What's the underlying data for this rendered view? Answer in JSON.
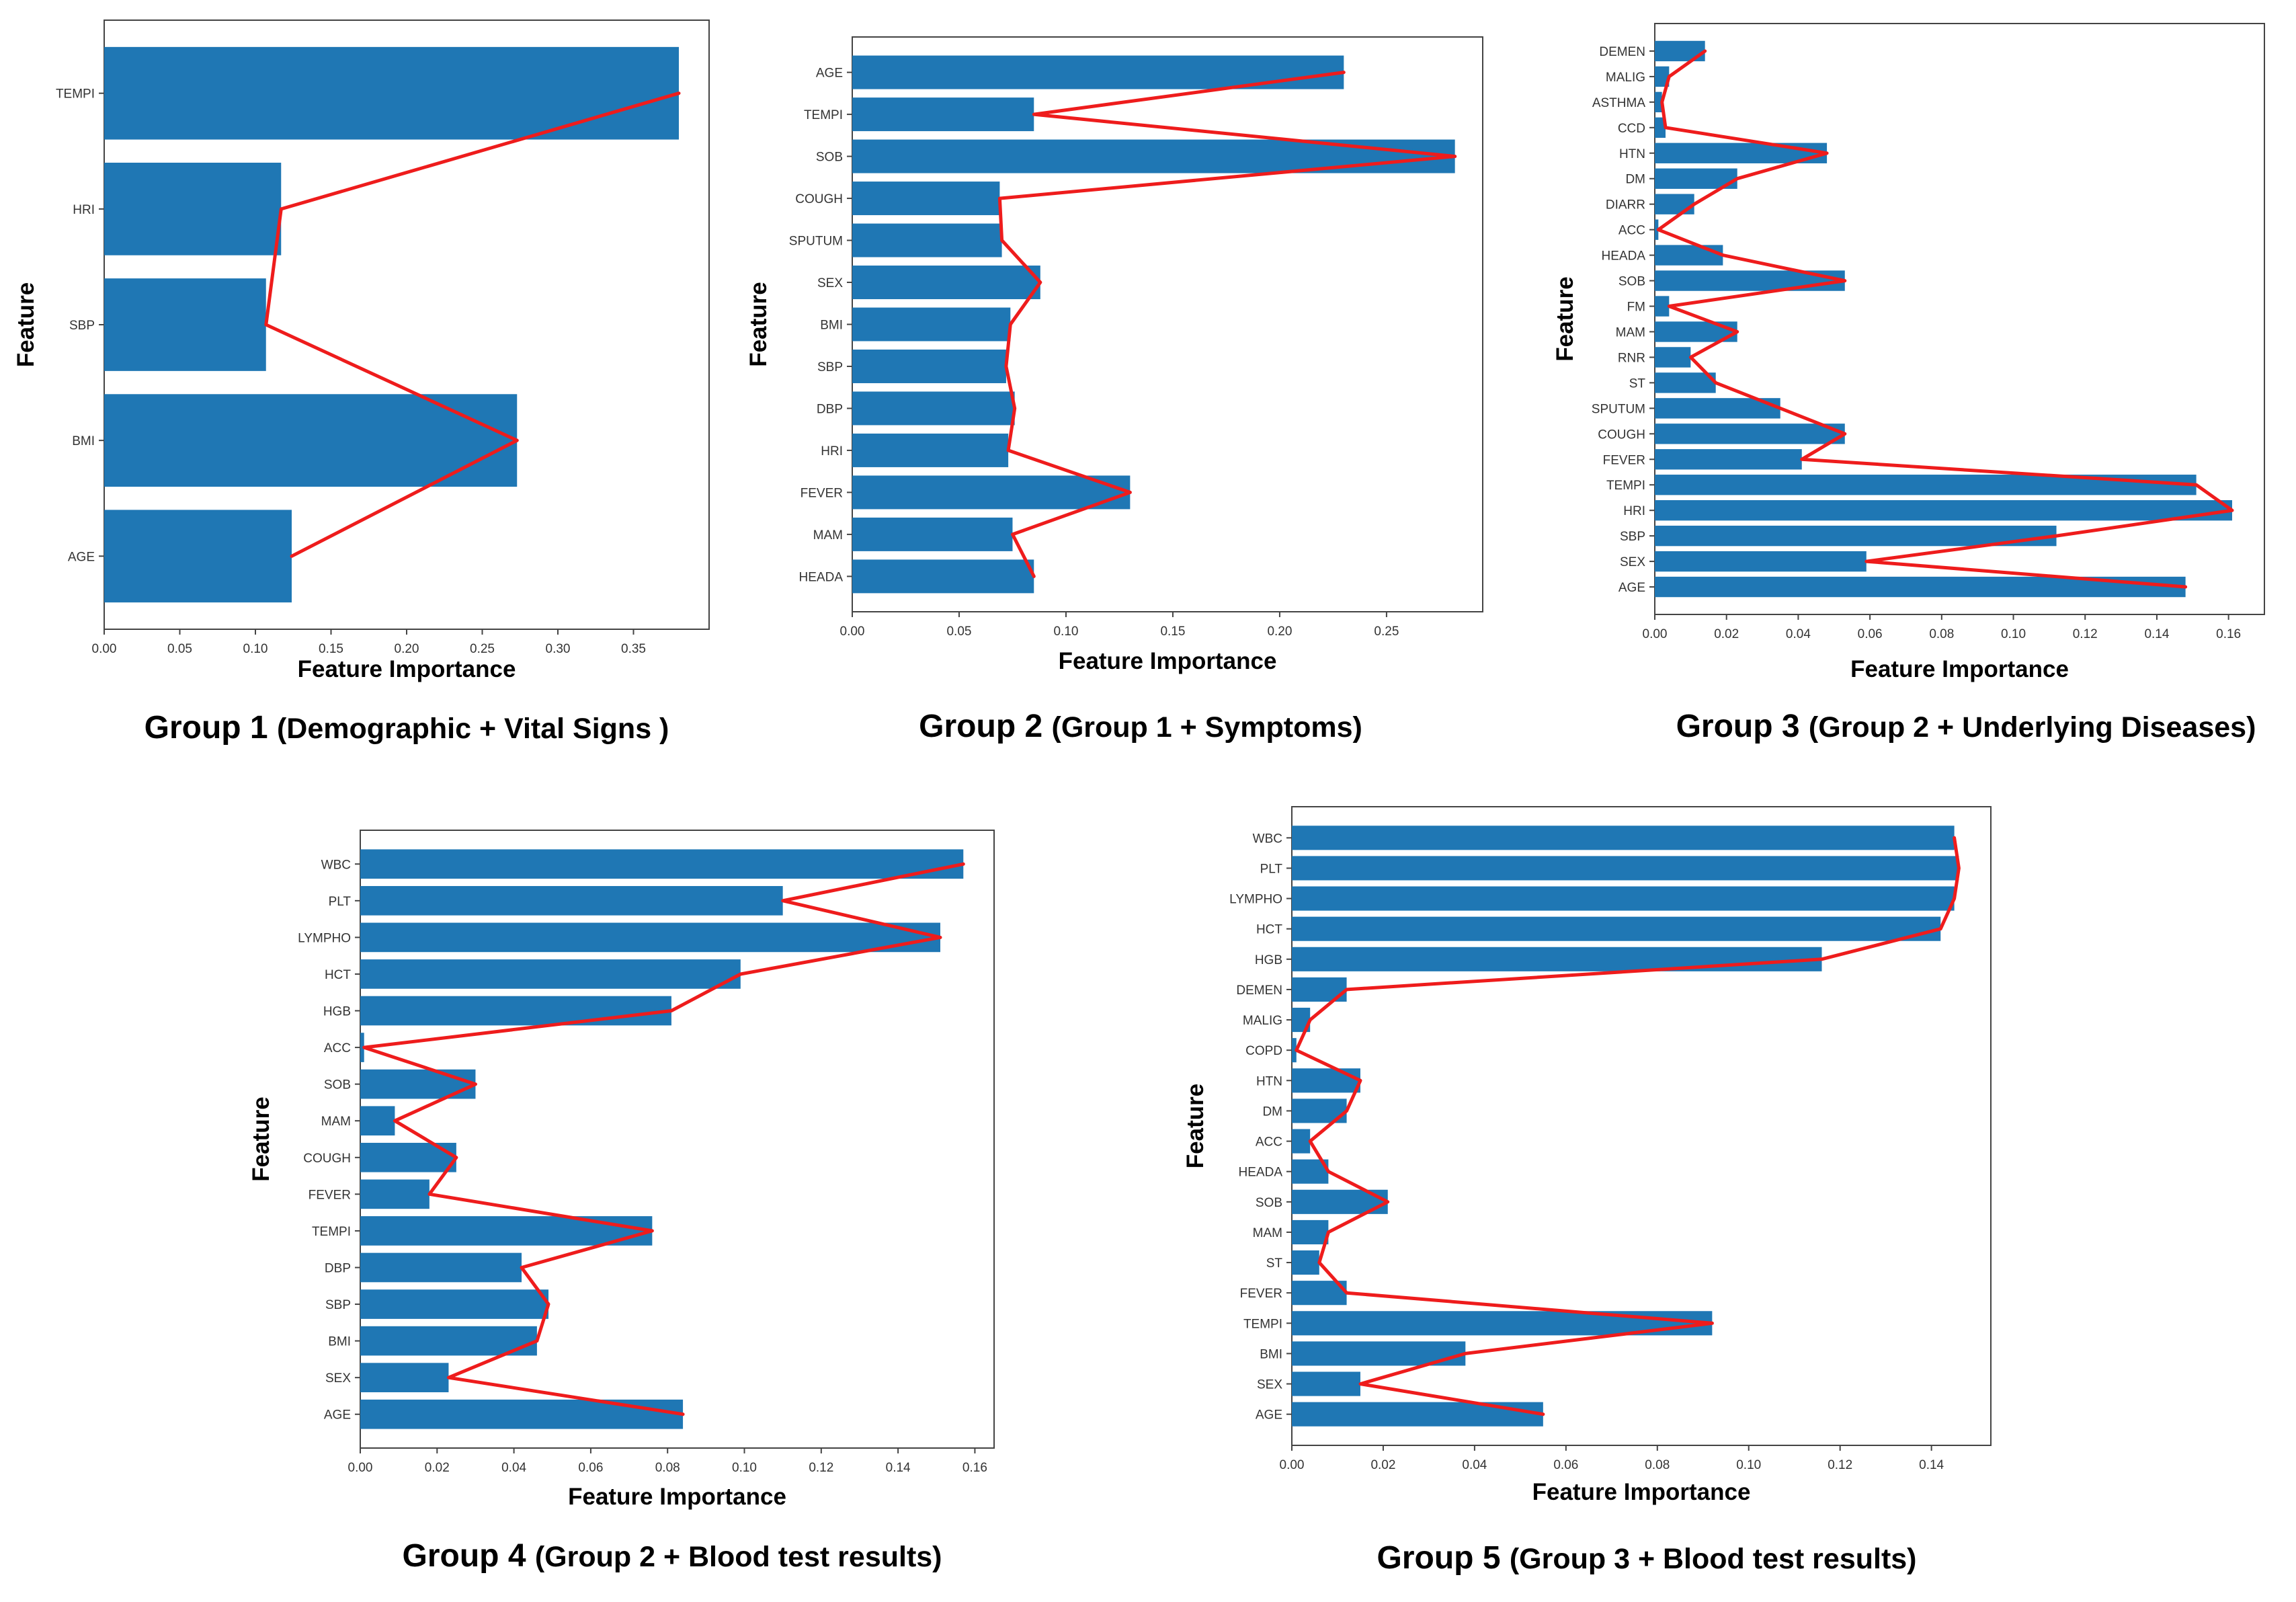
{
  "colors": {
    "bar": "#1f77b4",
    "line": "#ee1c1c",
    "axis": "#444444",
    "text": "#000000"
  },
  "chart_data": [
    {
      "type": "bar",
      "orientation": "horizontal",
      "caption_main": "Group 1",
      "caption_sub": "(Demographic + Vital Signs )",
      "xlabel": "Feature Importance",
      "ylabel": "Feature",
      "xlim": [
        0,
        0.4
      ],
      "xticks": [
        "0.00",
        "0.05",
        "0.10",
        "0.15",
        "0.20",
        "0.25",
        "0.30",
        "0.35"
      ],
      "categories": [
        "TEMPI",
        "HRI",
        "SBP",
        "BMI",
        "AGE"
      ],
      "values": [
        0.38,
        0.117,
        0.107,
        0.273,
        0.124
      ]
    },
    {
      "type": "bar",
      "orientation": "horizontal",
      "caption_main": "Group 2",
      "caption_sub": "(Group 1 + Symptoms)",
      "xlabel": "Feature Importance",
      "ylabel": "Feature",
      "xlim": [
        0,
        0.295
      ],
      "xticks": [
        "0.00",
        "0.05",
        "0.10",
        "0.15",
        "0.20",
        "0.25"
      ],
      "categories": [
        "AGE",
        "TEMPI",
        "SOB",
        "COUGH",
        "SPUTUM",
        "SEX",
        "BMI",
        "SBP",
        "DBP",
        "HRI",
        "FEVER",
        "MAM",
        "HEADA"
      ],
      "values": [
        0.23,
        0.085,
        0.282,
        0.069,
        0.07,
        0.088,
        0.074,
        0.072,
        0.076,
        0.073,
        0.13,
        0.075,
        0.085
      ]
    },
    {
      "type": "bar",
      "orientation": "horizontal",
      "caption_main": "Group 3",
      "caption_sub": "(Group 2 + Underlying Diseases)",
      "xlabel": "Feature Importance",
      "ylabel": "Feature",
      "xlim": [
        0,
        0.17
      ],
      "xticks": [
        "0.00",
        "0.02",
        "0.04",
        "0.06",
        "0.08",
        "0.10",
        "0.12",
        "0.14",
        "0.16"
      ],
      "categories": [
        "DEMEN",
        "MALIG",
        "ASTHMA",
        "CCD",
        "HTN",
        "DM",
        "DIARR",
        "ACC",
        "HEADA",
        "SOB",
        "FM",
        "MAM",
        "RNR",
        "ST",
        "SPUTUM",
        "COUGH",
        "FEVER",
        "TEMPI",
        "HRI",
        "SBP",
        "SEX",
        "AGE"
      ],
      "values": [
        0.014,
        0.004,
        0.002,
        0.003,
        0.048,
        0.023,
        0.011,
        0.001,
        0.019,
        0.053,
        0.004,
        0.023,
        0.01,
        0.017,
        0.035,
        0.053,
        0.041,
        0.151,
        0.161,
        0.112,
        0.059,
        0.148
      ]
    },
    {
      "type": "bar",
      "orientation": "horizontal",
      "caption_main": "Group 4",
      "caption_sub": "(Group 2 + Blood test results)",
      "xlabel": "Feature Importance",
      "ylabel": "Feature",
      "xlim": [
        0,
        0.165
      ],
      "xticks": [
        "0.00",
        "0.02",
        "0.04",
        "0.06",
        "0.08",
        "0.10",
        "0.12",
        "0.14",
        "0.16"
      ],
      "categories": [
        "WBC",
        "PLT",
        "LYMPHO",
        "HCT",
        "HGB",
        "ACC",
        "SOB",
        "MAM",
        "COUGH",
        "FEVER",
        "TEMPI",
        "DBP",
        "SBP",
        "BMI",
        "SEX",
        "AGE"
      ],
      "values": [
        0.157,
        0.11,
        0.151,
        0.099,
        0.081,
        0.001,
        0.03,
        0.009,
        0.025,
        0.018,
        0.076,
        0.042,
        0.049,
        0.046,
        0.023,
        0.084
      ]
    },
    {
      "type": "bar",
      "orientation": "horizontal",
      "caption_main": "Group 5",
      "caption_sub": "(Group 3 + Blood test results)",
      "xlabel": "Feature Importance",
      "ylabel": "Feature",
      "xlim": [
        0,
        0.153
      ],
      "xticks": [
        "0.00",
        "0.02",
        "0.04",
        "0.06",
        "0.08",
        "0.10",
        "0.12",
        "0.14"
      ],
      "categories": [
        "WBC",
        "PLT",
        "LYMPHO",
        "HCT",
        "HGB",
        "DEMEN",
        "MALIG",
        "COPD",
        "HTN",
        "DM",
        "ACC",
        "HEADA",
        "SOB",
        "MAM",
        "ST",
        "FEVER",
        "TEMPI",
        "BMI",
        "SEX",
        "AGE"
      ],
      "values": [
        0.145,
        0.146,
        0.145,
        0.142,
        0.116,
        0.012,
        0.004,
        0.001,
        0.015,
        0.012,
        0.004,
        0.008,
        0.021,
        0.008,
        0.006,
        0.012,
        0.092,
        0.038,
        0.015,
        0.055
      ]
    }
  ]
}
